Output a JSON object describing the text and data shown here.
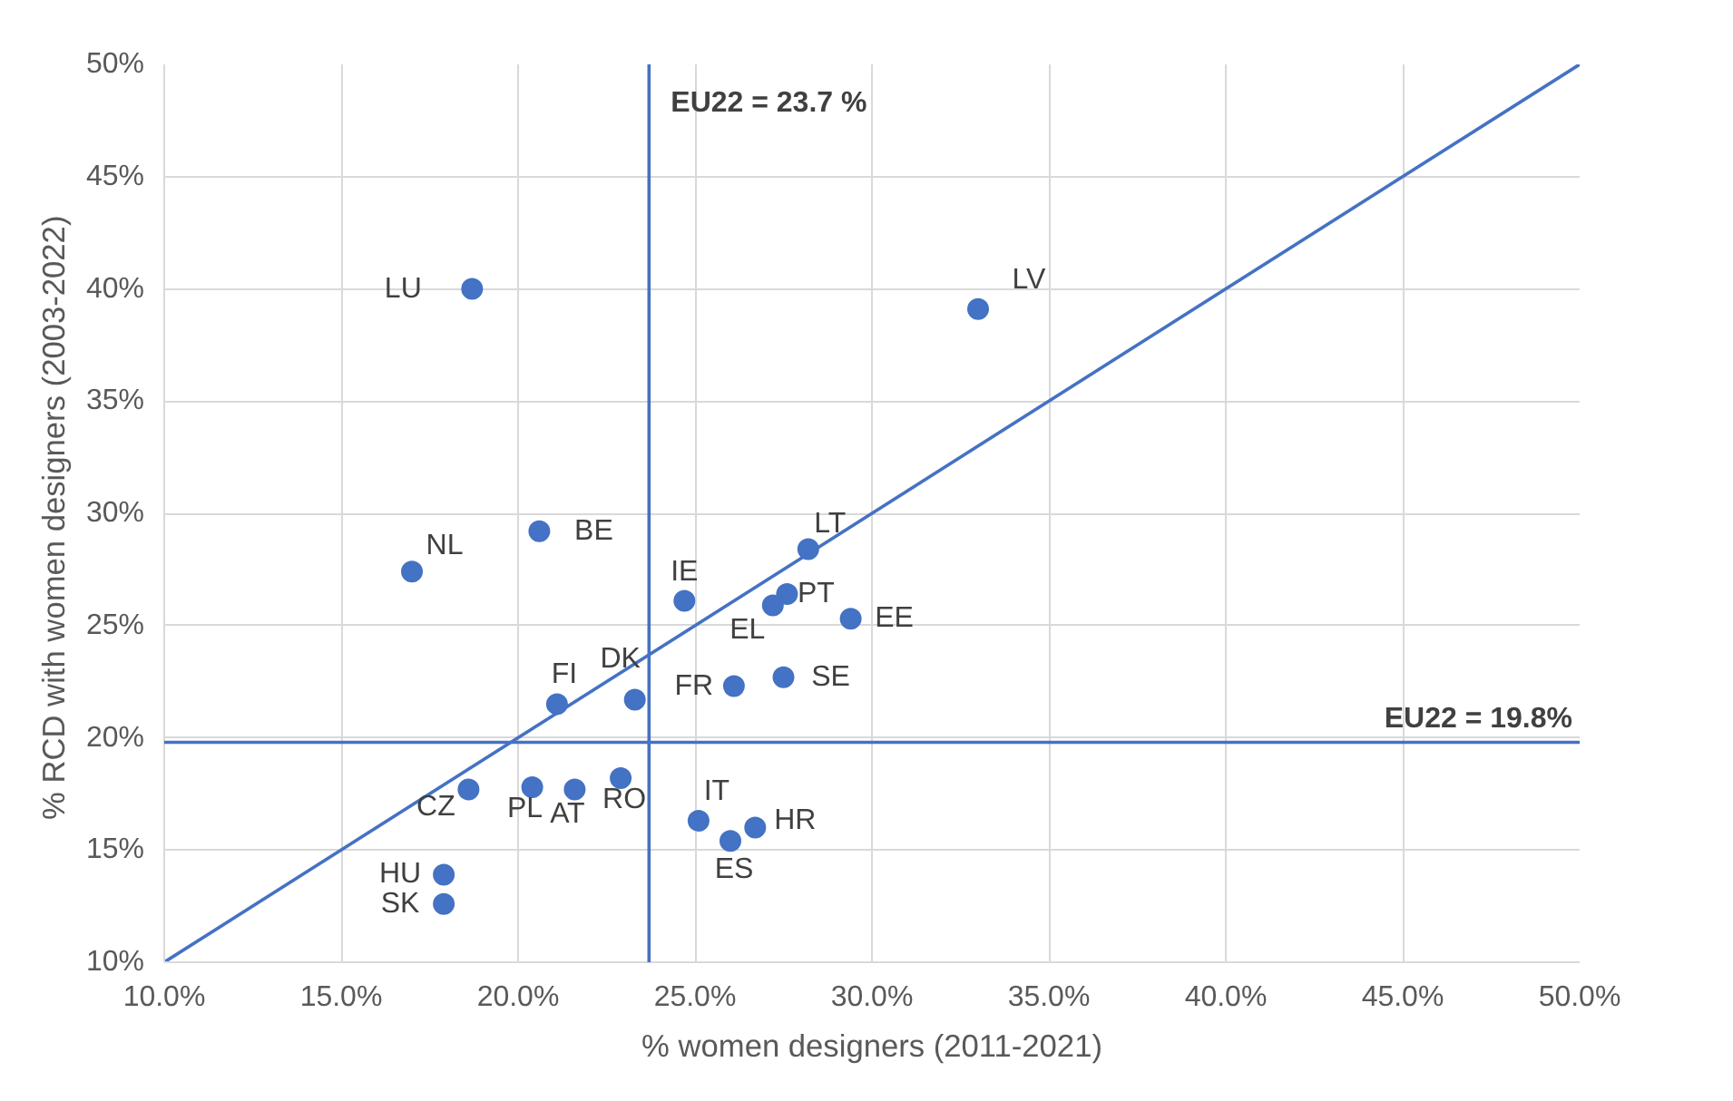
{
  "chart_data": {
    "type": "scatter",
    "xlabel": "% women designers (2011-2021)",
    "ylabel": "% RCD with women  designers (2003-2022)",
    "xlim": [
      10,
      50
    ],
    "ylim": [
      10,
      50
    ],
    "xticks": [
      {
        "value": 10,
        "label": "10.0%"
      },
      {
        "value": 15,
        "label": "15.0%"
      },
      {
        "value": 20,
        "label": "20.0%"
      },
      {
        "value": 25,
        "label": "25.0%"
      },
      {
        "value": 30,
        "label": "30.0%"
      },
      {
        "value": 35,
        "label": "35.0%"
      },
      {
        "value": 40,
        "label": "40.0%"
      },
      {
        "value": 45,
        "label": "45.0%"
      },
      {
        "value": 50,
        "label": "50.0%"
      }
    ],
    "yticks": [
      {
        "value": 10,
        "label": "10%"
      },
      {
        "value": 15,
        "label": "15%"
      },
      {
        "value": 20,
        "label": "20%"
      },
      {
        "value": 25,
        "label": "25%"
      },
      {
        "value": 30,
        "label": "30%"
      },
      {
        "value": 35,
        "label": "35%"
      },
      {
        "value": 40,
        "label": "40%"
      },
      {
        "value": 45,
        "label": "45%"
      },
      {
        "value": 50,
        "label": "50%"
      }
    ],
    "grid": true,
    "series": [
      {
        "marker": "circle",
        "color": "#4472c4",
        "x": [
          18.7,
          33.0,
          17.0,
          20.6,
          24.7,
          28.2,
          27.6,
          27.2,
          29.4,
          21.1,
          23.3,
          26.1,
          27.5,
          18.6,
          20.4,
          21.6,
          22.9,
          25.1,
          26.7,
          26.0,
          17.9,
          17.9
        ],
        "values": [
          40.0,
          39.1,
          27.4,
          29.2,
          26.1,
          28.4,
          26.4,
          25.9,
          25.3,
          21.5,
          21.7,
          22.3,
          22.7,
          17.7,
          17.8,
          17.7,
          18.2,
          16.3,
          16.0,
          15.4,
          13.9,
          12.6
        ]
      },
      {
        "type": "line",
        "marker": "none",
        "color": "#4472c4",
        "x": [
          10,
          50
        ],
        "values": [
          10,
          50
        ]
      }
    ],
    "ref_lines": [
      {
        "axis": "x",
        "value": 23.7,
        "label": "EU22 = 23.7 %",
        "color": "#4472c4"
      },
      {
        "axis": "y",
        "value": 19.8,
        "label": "EU22 = 19.8%",
        "color": "#4472c4"
      }
    ],
    "annotations": [
      {
        "text": "LU",
        "x": 18.7,
        "y": 40.0
      },
      {
        "text": "LV",
        "x": 33.0,
        "y": 39.1
      },
      {
        "text": "NL",
        "x": 17.0,
        "y": 27.4
      },
      {
        "text": "BE",
        "x": 20.6,
        "y": 29.2
      },
      {
        "text": "IE",
        "x": 24.7,
        "y": 26.1
      },
      {
        "text": "LT",
        "x": 28.2,
        "y": 28.4
      },
      {
        "text": "PT",
        "x": 27.6,
        "y": 26.4
      },
      {
        "text": "EL",
        "x": 27.2,
        "y": 25.9
      },
      {
        "text": "EE",
        "x": 29.4,
        "y": 25.3
      },
      {
        "text": "FI",
        "x": 21.1,
        "y": 21.5
      },
      {
        "text": "DK",
        "x": 23.3,
        "y": 21.7
      },
      {
        "text": "FR",
        "x": 26.1,
        "y": 22.3
      },
      {
        "text": "SE",
        "x": 27.5,
        "y": 22.7
      },
      {
        "text": "CZ",
        "x": 18.6,
        "y": 17.7
      },
      {
        "text": "PL",
        "x": 20.4,
        "y": 17.8
      },
      {
        "text": "AT",
        "x": 21.6,
        "y": 17.7
      },
      {
        "text": "RO",
        "x": 22.9,
        "y": 18.2
      },
      {
        "text": "IT",
        "x": 25.1,
        "y": 16.3
      },
      {
        "text": "HR",
        "x": 26.7,
        "y": 16.0
      },
      {
        "text": "ES",
        "x": 26.0,
        "y": 15.4
      },
      {
        "text": "HU",
        "x": 17.9,
        "y": 13.9
      },
      {
        "text": "SK",
        "x": 17.9,
        "y": 12.6
      }
    ]
  }
}
